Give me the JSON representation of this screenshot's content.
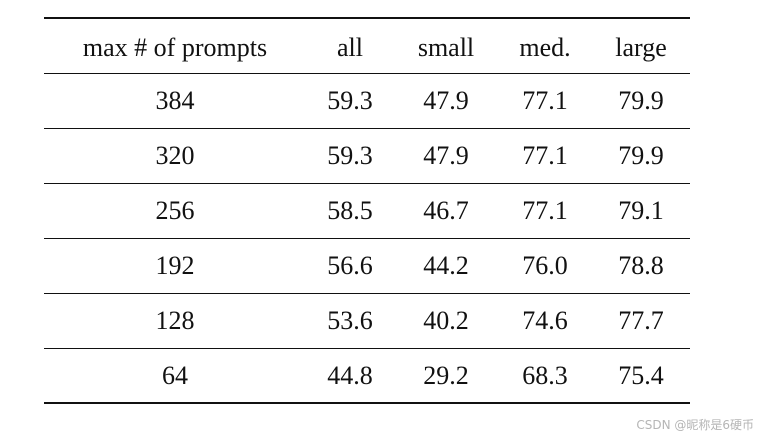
{
  "table": {
    "header": [
      "max # of prompts",
      "all",
      "small",
      "med.",
      "large"
    ],
    "rows": [
      [
        "384",
        "59.3",
        "47.9",
        "77.1",
        "79.9"
      ],
      [
        "320",
        "59.3",
        "47.9",
        "77.1",
        "79.9"
      ],
      [
        "256",
        "58.5",
        "46.7",
        "77.1",
        "79.1"
      ],
      [
        "192",
        "56.6",
        "44.2",
        "76.0",
        "78.8"
      ],
      [
        "128",
        "53.6",
        "40.2",
        "74.6",
        "77.7"
      ],
      [
        "64",
        "44.8",
        "29.2",
        "68.3",
        "75.4"
      ]
    ]
  },
  "watermark": "CSDN @昵称是6硬币"
}
